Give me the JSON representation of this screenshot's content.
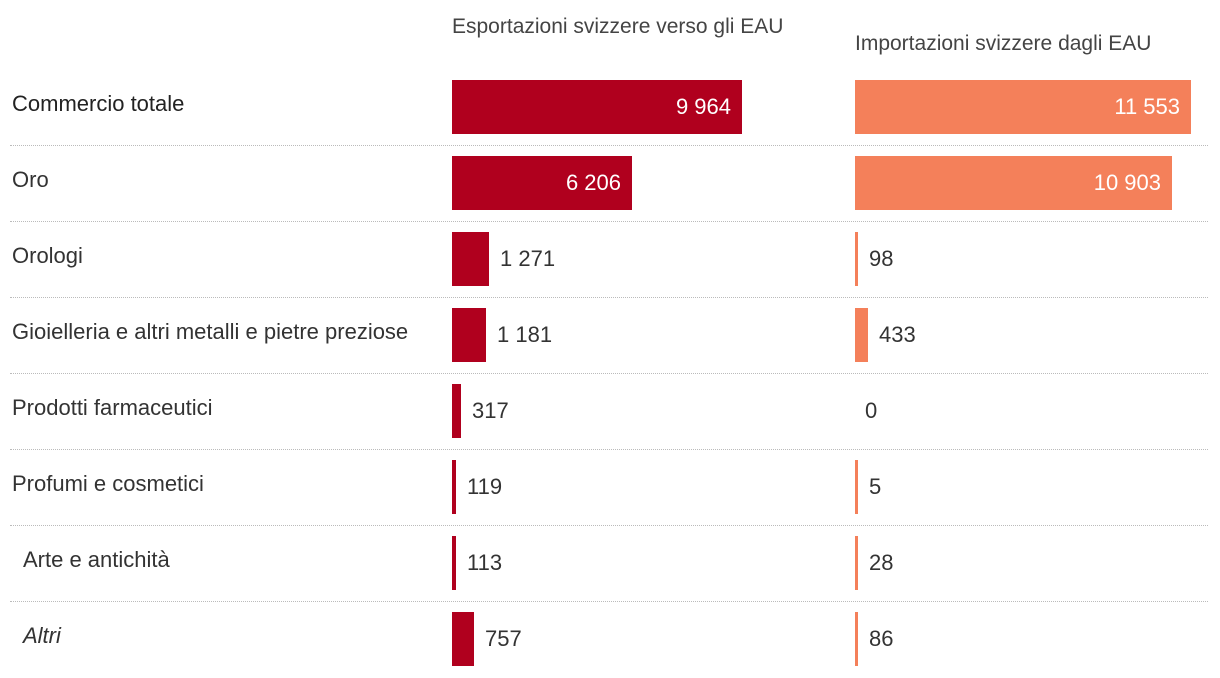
{
  "chart_data": {
    "type": "bar",
    "orientation": "horizontal",
    "title": "",
    "categories": [
      "Commercio totale",
      "Oro",
      "Orologi",
      "Gioielleria e altri metalli e pietre preziose",
      "Prodotti farmaceutici",
      "Profumi e cosmetici",
      "Arte e antichità",
      "Altri"
    ],
    "series": [
      {
        "name": "Esportazioni svizzere verso gli EAU",
        "color": "#b0001e",
        "values": [
          9964,
          6206,
          1271,
          1181,
          317,
          119,
          113,
          757
        ],
        "labels": [
          "9 964",
          "6 206",
          "1 271",
          "1 181",
          "317",
          "119",
          "113",
          "757"
        ]
      },
      {
        "name": "Importazioni svizzere dagli EAU",
        "color": "#f4805a",
        "values": [
          11553,
          10903,
          98,
          433,
          0,
          5,
          28,
          86
        ],
        "labels": [
          "11 553",
          "10 903",
          "98",
          "433",
          "0",
          "5",
          "28",
          "86"
        ]
      }
    ],
    "xlim": [
      0,
      11553
    ],
    "grid": false,
    "legend": "column-headers"
  }
}
